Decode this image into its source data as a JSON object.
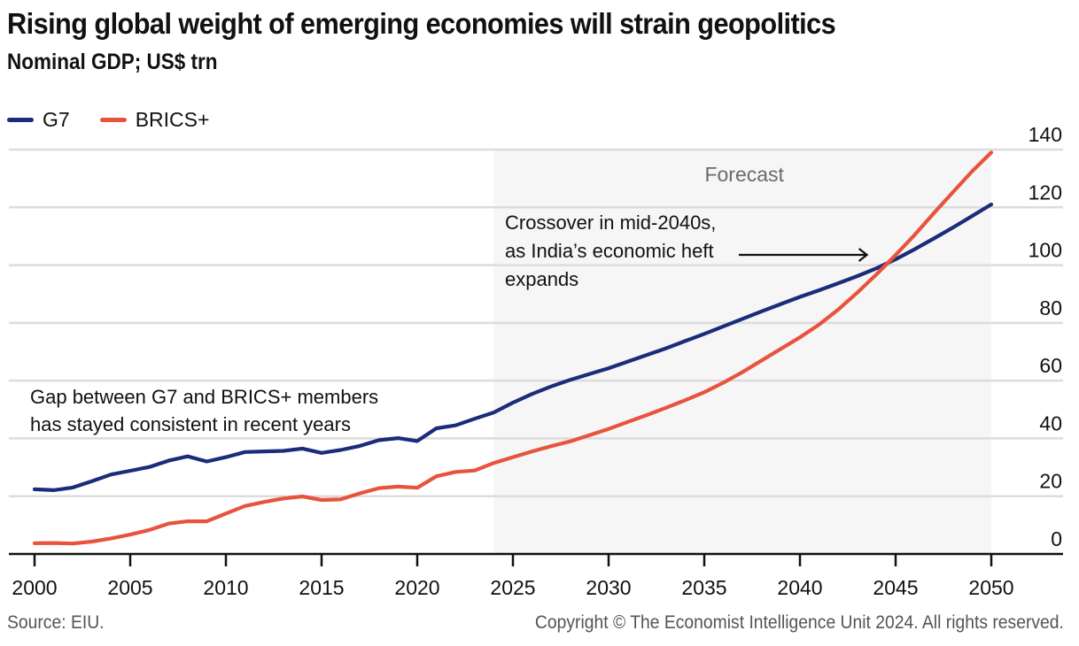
{
  "header": {
    "title": "Rising global weight of emerging economies will strain geopolitics",
    "subtitle": "Nominal GDP; US$ trn"
  },
  "footer": {
    "source": "Source: EIU.",
    "copyright": "Copyright © The Economist Intelligence Unit 2024. All rights reserved."
  },
  "chart_data": {
    "type": "line",
    "title": "Rising global weight of emerging economies will strain geopolitics",
    "subtitle": "Nominal GDP; US$ trn",
    "xlabel": "",
    "ylabel": "",
    "xlim": [
      2000,
      2050
    ],
    "ylim": [
      0,
      140
    ],
    "x_ticks": [
      2000,
      2005,
      2010,
      2015,
      2020,
      2025,
      2030,
      2035,
      2040,
      2045,
      2050
    ],
    "y_ticks": [
      0,
      20,
      40,
      60,
      80,
      100,
      120,
      140
    ],
    "y_axis_side": "right",
    "grid": true,
    "legend_position": "top-left",
    "forecast_region": {
      "label": "Forecast",
      "start": 2024,
      "end": 2050,
      "color": "#f6f6f6"
    },
    "x": [
      2000,
      2001,
      2002,
      2003,
      2004,
      2005,
      2006,
      2007,
      2008,
      2009,
      2010,
      2011,
      2012,
      2013,
      2014,
      2015,
      2016,
      2017,
      2018,
      2019,
      2020,
      2021,
      2022,
      2023,
      2024,
      2025,
      2026,
      2027,
      2028,
      2029,
      2030,
      2031,
      2032,
      2033,
      2034,
      2035,
      2036,
      2037,
      2038,
      2039,
      2040,
      2041,
      2042,
      2043,
      2044,
      2045,
      2046,
      2047,
      2048,
      2049,
      2050
    ],
    "series": [
      {
        "name": "G7",
        "color": "#1a2c7a",
        "values": [
          22.4,
          22.1,
          23.0,
          25.2,
          27.5,
          28.8,
          30.1,
          32.3,
          33.8,
          32.0,
          33.5,
          35.3,
          35.5,
          35.7,
          36.5,
          35.0,
          36.0,
          37.4,
          39.4,
          40.1,
          39.1,
          43.5,
          44.5,
          46.8,
          49.0,
          52.4,
          55.4,
          58.0,
          60.3,
          62.3,
          64.3,
          66.6,
          68.9,
          71.2,
          73.7,
          76.2,
          78.8,
          81.4,
          84.0,
          86.5,
          89.0,
          91.3,
          93.7,
          96.2,
          98.9,
          102.0,
          105.5,
          109.2,
          113.0,
          117.0,
          121.0
        ]
      },
      {
        "name": "BRICS+",
        "color": "#e8533e",
        "values": [
          3.7,
          3.8,
          3.6,
          4.3,
          5.4,
          6.7,
          8.3,
          10.5,
          11.3,
          11.3,
          14.0,
          16.6,
          18.0,
          19.2,
          19.9,
          18.7,
          18.9,
          21.0,
          22.8,
          23.3,
          22.9,
          26.9,
          28.4,
          28.9,
          31.5,
          33.5,
          35.5,
          37.3,
          39.0,
          41.1,
          43.3,
          45.7,
          48.1,
          50.6,
          53.2,
          56.0,
          59.3,
          63.0,
          67.0,
          71.0,
          75.0,
          79.4,
          84.6,
          90.5,
          96.8,
          103.5,
          110.5,
          118.0,
          125.3,
          132.5,
          139.0
        ]
      }
    ],
    "annotations": [
      {
        "text_lines": [
          "Gap between G7 and BRICS+ members",
          "has stayed consistent in recent years"
        ]
      },
      {
        "text_lines": [
          "Crossover in mid-2040s,",
          "as India’s economic heft",
          "expands"
        ],
        "arrow_to": {
          "x": 2043.5,
          "y": 102
        }
      }
    ]
  }
}
